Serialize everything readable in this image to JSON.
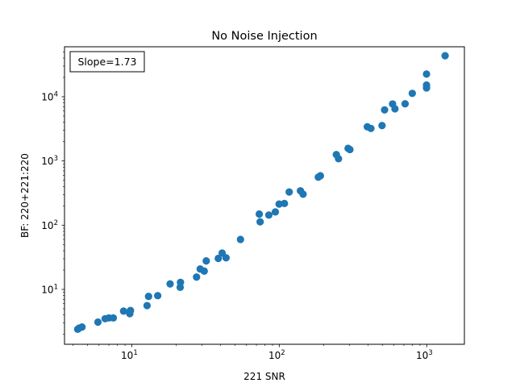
{
  "chart_data": {
    "type": "scatter",
    "title": "No Noise Injection",
    "xlabel": "221 SNR",
    "ylabel": "BF: 220+221:220",
    "xscale": "log",
    "yscale": "log",
    "xlim": [
      3.5,
      1800
    ],
    "ylim": [
      1.4,
      60000
    ],
    "x_ticks": [
      {
        "base": "10",
        "exp": "1",
        "value": 10
      },
      {
        "base": "10",
        "exp": "2",
        "value": 100
      },
      {
        "base": "10",
        "exp": "3",
        "value": 1000
      }
    ],
    "y_ticks": [
      {
        "base": "10",
        "exp": "1",
        "value": 10
      },
      {
        "base": "10",
        "exp": "2",
        "value": 100
      },
      {
        "base": "10",
        "exp": "3",
        "value": 1000
      },
      {
        "base": "10",
        "exp": "4",
        "value": 10000
      }
    ],
    "grid": false,
    "annotation": {
      "text": "Slope=1.73",
      "position": "top-left"
    },
    "color": "#1f77b4",
    "points": [
      {
        "x": 4.3,
        "y": 2.4
      },
      {
        "x": 4.4,
        "y": 2.5
      },
      {
        "x": 4.6,
        "y": 2.6
      },
      {
        "x": 5.9,
        "y": 3.1
      },
      {
        "x": 6.6,
        "y": 3.5
      },
      {
        "x": 7.0,
        "y": 3.6
      },
      {
        "x": 7.5,
        "y": 3.6
      },
      {
        "x": 8.8,
        "y": 4.6
      },
      {
        "x": 9.7,
        "y": 4.2
      },
      {
        "x": 9.8,
        "y": 4.7
      },
      {
        "x": 12.7,
        "y": 5.6
      },
      {
        "x": 13.0,
        "y": 7.8
      },
      {
        "x": 15.0,
        "y": 8.0
      },
      {
        "x": 18.2,
        "y": 12.2
      },
      {
        "x": 21.3,
        "y": 10.8
      },
      {
        "x": 21.4,
        "y": 12.9
      },
      {
        "x": 27.5,
        "y": 15.6
      },
      {
        "x": 29.1,
        "y": 20.8
      },
      {
        "x": 31.0,
        "y": 19.3
      },
      {
        "x": 32.0,
        "y": 27.8
      },
      {
        "x": 38.6,
        "y": 30.4
      },
      {
        "x": 41.0,
        "y": 36.8
      },
      {
        "x": 43.6,
        "y": 31.1
      },
      {
        "x": 54.6,
        "y": 60.0
      },
      {
        "x": 73.2,
        "y": 149
      },
      {
        "x": 74.2,
        "y": 113
      },
      {
        "x": 85.0,
        "y": 144
      },
      {
        "x": 94.1,
        "y": 161
      },
      {
        "x": 99.8,
        "y": 213
      },
      {
        "x": 108.4,
        "y": 218
      },
      {
        "x": 116.8,
        "y": 329
      },
      {
        "x": 139.2,
        "y": 343
      },
      {
        "x": 145.1,
        "y": 304
      },
      {
        "x": 184.0,
        "y": 559
      },
      {
        "x": 190.1,
        "y": 589
      },
      {
        "x": 243.8,
        "y": 1256
      },
      {
        "x": 252.3,
        "y": 1083
      },
      {
        "x": 292.9,
        "y": 1573
      },
      {
        "x": 301.3,
        "y": 1507
      },
      {
        "x": 395.3,
        "y": 3406
      },
      {
        "x": 418.1,
        "y": 3210
      },
      {
        "x": 497.5,
        "y": 3558
      },
      {
        "x": 517.8,
        "y": 6241
      },
      {
        "x": 586.4,
        "y": 7723
      },
      {
        "x": 608.9,
        "y": 6487
      },
      {
        "x": 713.3,
        "y": 7767
      },
      {
        "x": 797.8,
        "y": 11289
      },
      {
        "x": 996.5,
        "y": 13713
      },
      {
        "x": 996.5,
        "y": 15193
      },
      {
        "x": 996.5,
        "y": 22562
      },
      {
        "x": 1332,
        "y": 43510
      }
    ]
  }
}
